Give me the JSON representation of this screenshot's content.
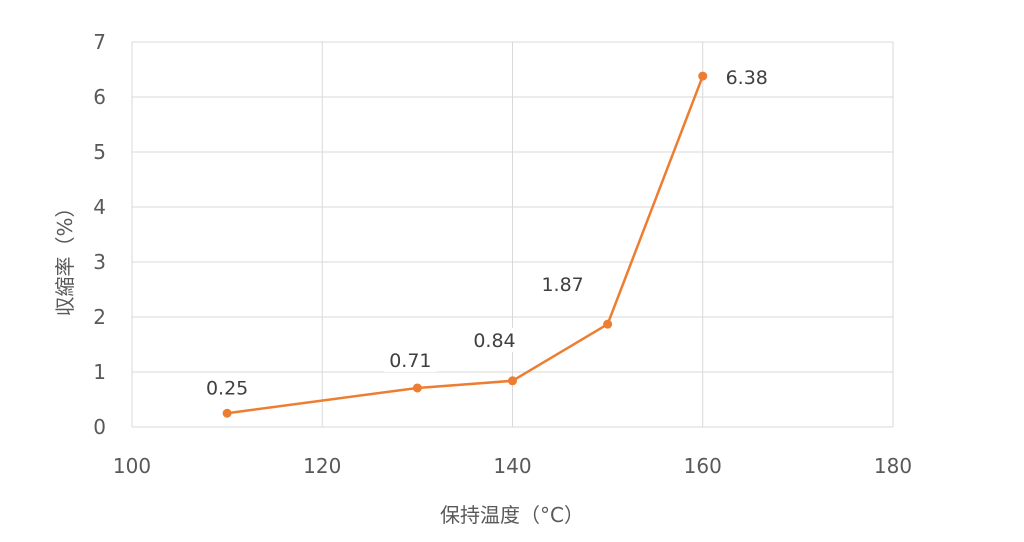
{
  "chart_data": {
    "type": "line",
    "xlabel": "保持温度（°C）",
    "ylabel": "収縮率（%）",
    "xlim": [
      100,
      180
    ],
    "ylim": [
      0,
      7
    ],
    "x_ticks": [
      "100",
      "120",
      "140",
      "160",
      "180"
    ],
    "y_ticks": [
      "0",
      "1",
      "2",
      "3",
      "4",
      "5",
      "6",
      "7"
    ],
    "grid": true,
    "series": [
      {
        "x": [
          110,
          130,
          140,
          150,
          160
        ],
        "y": [
          0.25,
          0.71,
          0.84,
          1.87,
          6.38
        ],
        "labels": [
          "0.25",
          "0.71",
          "0.84",
          "1.87",
          "6.38"
        ],
        "color": "#ED7D31"
      }
    ],
    "grid_color": "#D9D9D9"
  }
}
